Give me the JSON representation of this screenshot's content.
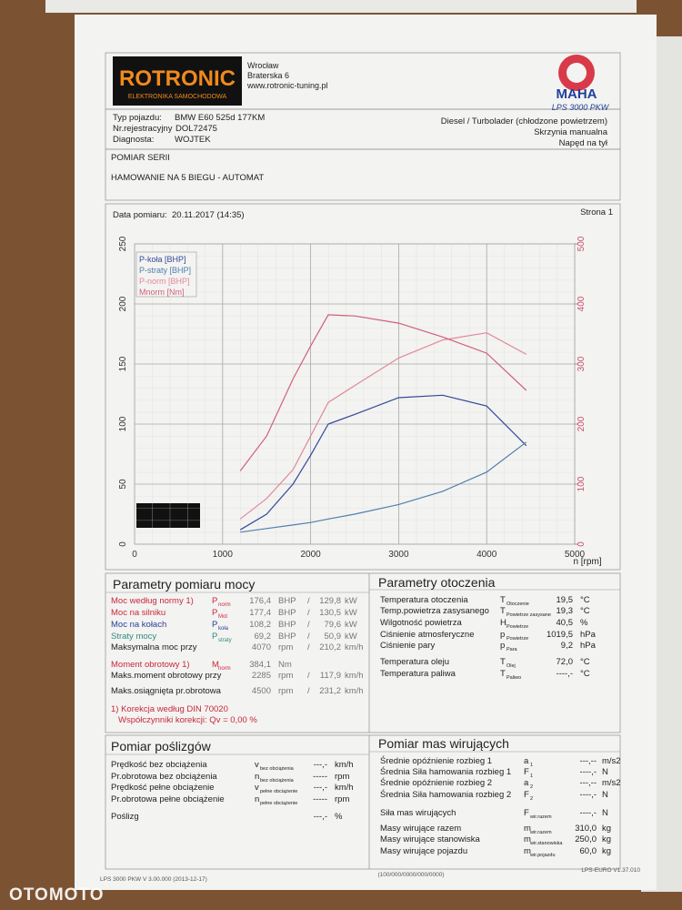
{
  "header": {
    "logo": "ROTRONIC",
    "logo_subtitle": "ELEKTRONIKA SAMOCHODOWA",
    "address": [
      "Wrocław",
      "Braterska 6",
      "www.rotronic-tuning.pl"
    ],
    "brand": "MAHA",
    "model": "LPS 3000 PKW"
  },
  "vehicle": {
    "type_label": "Typ pojazdu:",
    "type": "BMW E60 525d 177KM",
    "reg_label": "Nr.rejestracyjny",
    "reg": "DOL72475",
    "diag_label": "Diagnosta:",
    "diag": "WOJTEK",
    "engine": "Diesel / Turbolader (chłodzone powietrzem)",
    "gearbox": "Skrzynia manualna",
    "drive": "Napęd na tył"
  },
  "test": {
    "series": "POMIAR SERII",
    "description": "HAMOWANIE NA 5 BIEGU - AUTOMAT",
    "date_label": "Data pomiaru:",
    "date": "20.11.2017 (14:35)",
    "page": "Strona 1"
  },
  "chart_data": {
    "type": "line",
    "x_label": "n [rpm]",
    "x": [
      1200,
      1500,
      1800,
      2000,
      2200,
      2500,
      3000,
      3500,
      4000,
      4450
    ],
    "xlim": [
      0,
      5000
    ],
    "xticks": [
      0,
      1000,
      2000,
      3000,
      4000,
      5000
    ],
    "ylim": [
      0,
      250
    ],
    "yticks": [
      0,
      50,
      100,
      150,
      200,
      250
    ],
    "y2lim": [
      0,
      500
    ],
    "y2ticks": [
      0,
      100,
      200,
      300,
      400,
      500
    ],
    "y2_color": "#c8506e",
    "grid": true,
    "legend": "top-left",
    "series": [
      {
        "name": "P-koła [BHP]",
        "color": "#34499a",
        "values": [
          12,
          25,
          50,
          74,
          100,
          108,
          122,
          124,
          115,
          82
        ]
      },
      {
        "name": "P-straty [BHP]",
        "color": "#4f7fae",
        "values": [
          10,
          13,
          16,
          18,
          21,
          25,
          33,
          44,
          60,
          85
        ]
      },
      {
        "name": "P-norm [BHP]",
        "color": "#e0899b",
        "values": [
          21,
          38,
          62,
          90,
          118,
          132,
          155,
          170,
          176,
          158
        ]
      },
      {
        "name": "Mnorm [Nm]",
        "color": "#d0607c",
        "axis": "y2",
        "values": [
          122,
          180,
          275,
          330,
          382,
          380,
          368,
          345,
          318,
          256
        ]
      }
    ]
  },
  "power": {
    "title": "Parametry pomiaru mocy",
    "separator": "/",
    "rows": [
      {
        "label": "Moc według normy 1)",
        "sym": "P",
        "sub": "norm",
        "v1": "176,4",
        "u1": "BHP",
        "v2": "129,8",
        "u2": "kW",
        "color": "#c8283c"
      },
      {
        "label": "Moc na silniku",
        "sym": "P",
        "sub": "Mot",
        "v1": "177,4",
        "u1": "BHP",
        "v2": "130,5",
        "u2": "kW",
        "color": "#c8283c"
      },
      {
        "label": "Moc na kołach",
        "sym": "P",
        "sub": "koła",
        "v1": "108,2",
        "u1": "BHP",
        "v2": "79,6",
        "u2": "kW",
        "color": "#2a3f9a"
      },
      {
        "label": "Straty mocy",
        "sym": "P",
        "sub": "straty",
        "v1": "69,2",
        "u1": "BHP",
        "v2": "50,9",
        "u2": "kW",
        "color": "#2f8a7a"
      },
      {
        "label": "Maksymalna moc przy",
        "v1": "4070",
        "u1": "rpm",
        "v2": "210,2",
        "u2": "km/h",
        "color": "#222222"
      },
      {
        "label": "Moment obrotowy 1)",
        "sym": "M",
        "sub": "norm",
        "v1": "384,1",
        "u1": "Nm",
        "color": "#c8283c"
      },
      {
        "label": "Maks.moment obrotowy przy",
        "v1": "2285",
        "u1": "rpm",
        "v2": "117,9",
        "u2": "km/h",
        "color": "#222222"
      },
      {
        "label": "Maks.osiągnięta pr.obrotowa",
        "v1": "4500",
        "u1": "rpm",
        "v2": "231,2",
        "u2": "km/h",
        "color": "#222222"
      }
    ],
    "note": "1) Korekcja według DIN 70020",
    "correction": "Współczynniki korekcji: Qv =  0,00 %"
  },
  "ambient": {
    "title": "Parametry otoczenia",
    "rows": [
      {
        "label": "Temperatura otoczenia",
        "sym": "T",
        "sub": "Otoczenie",
        "value": "19,5",
        "unit": "°C"
      },
      {
        "label": "Temp.powietrza zasysanego",
        "sym": "T",
        "sub": "Powietrze zasysane",
        "value": "19,3",
        "unit": "°C"
      },
      {
        "label": "Wilgotność powietrza",
        "sym": "H",
        "sub": "Powietrze",
        "value": "40,5",
        "unit": "%"
      },
      {
        "label": "Ciśnienie atmosferyczne",
        "sym": "p",
        "sub": "Powietrze",
        "value": "1019,5",
        "unit": "hPa"
      },
      {
        "label": "Ciśnienie pary",
        "sym": "p",
        "sub": "Para",
        "value": "9,2",
        "unit": "hPa"
      },
      {
        "label": "Temperatura oleju",
        "sym": "T",
        "sub": "Olej",
        "value": "72,0",
        "unit": "°C"
      },
      {
        "label": "Temperatura paliwa",
        "sym": "T",
        "sub": "Paliwo",
        "value": "----,-",
        "unit": "°C"
      }
    ]
  },
  "slip": {
    "title": "Pomiar poślizgów",
    "rows": [
      {
        "label": "Prędkość bez obciążenia",
        "sym": "v",
        "sub": "bez obciążenia",
        "value": "---,-",
        "unit": "km/h"
      },
      {
        "label": "Pr.obrotowa bez obciążenia",
        "sym": "n",
        "sub": "bez obciążenia",
        "value": "-----",
        "unit": "rpm"
      },
      {
        "label": "Prędkość pełne obciążenie",
        "sym": "v",
        "sub": "pełne obciążenie",
        "value": "---,-",
        "unit": "km/h"
      },
      {
        "label": "Pr.obrotowa pełne obciążenie",
        "sym": "n",
        "sub": "pełne obciążenie",
        "value": "-----",
        "unit": "rpm"
      },
      {
        "label": "Poślizg",
        "value": "---,-",
        "unit": "%"
      }
    ]
  },
  "masses": {
    "title": "Pomiar mas wirujących",
    "rows": [
      {
        "label": "Średnie opóźnienie rozbieg 1",
        "sym": "a",
        "sub": "1",
        "value": "---,--",
        "unit": "m/s2"
      },
      {
        "label": "Średnia Siła hamowania rozbieg 1",
        "sym": "F",
        "sub": "1",
        "value": "----,-",
        "unit": "N"
      },
      {
        "label": "Średnie opóźnienie rozbieg 2",
        "sym": "a",
        "sub": "2",
        "value": "---,--",
        "unit": "m/s2"
      },
      {
        "label": "Średnia Siła hamowania rozbieg 2",
        "sym": "F",
        "sub": "2",
        "value": "----,-",
        "unit": "N"
      },
      {
        "label": "Siła mas wirujących",
        "sym": "F",
        "sub": "wir.razem",
        "value": "----,-",
        "unit": "N"
      },
      {
        "label": "Masy wirujące razem",
        "sym": "m",
        "sub": "wir.razem",
        "value": "310,0",
        "unit": "kg"
      },
      {
        "label": "Masy wirujące stanowiska",
        "sym": "m",
        "sub": "wir.stanowiska",
        "value": "250,0",
        "unit": "kg"
      },
      {
        "label": "Masy wirujące pojazdu",
        "sym": "m",
        "sub": "wir.pojazdu",
        "value": "60,0",
        "unit": "kg"
      }
    ]
  },
  "footer": {
    "left": "LPS 3000 PKW V 3.00.000 (2013-12-17)",
    "center": "(100/000/0000/000/0000)",
    "right": "LPS-EURO V1.37.010"
  },
  "watermark": "OTOMOTO"
}
